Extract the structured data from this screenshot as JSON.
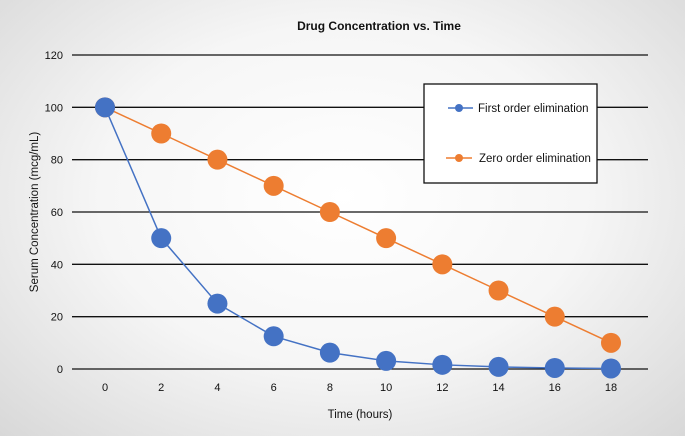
{
  "chart_data": {
    "type": "line",
    "title": "Drug Concentration vs. Time",
    "xlabel": "Time (hours)",
    "ylabel": "Serum Concentration (mcg/mL)",
    "x": [
      0,
      2,
      4,
      6,
      8,
      10,
      12,
      14,
      16,
      18
    ],
    "xlim": [
      0,
      18
    ],
    "ylim": [
      0,
      120
    ],
    "yticks": [
      0,
      20,
      40,
      60,
      80,
      100,
      120
    ],
    "grid": true,
    "legend_position": "top-right",
    "series": [
      {
        "name": "First order elimination",
        "color": "#4472c4",
        "values": [
          100,
          50,
          25,
          12.5,
          6.25,
          3.1,
          1.6,
          0.8,
          0.4,
          0.2
        ]
      },
      {
        "name": "Zero order elimination",
        "color": "#ed7d31",
        "values": [
          100,
          90,
          80,
          70,
          60,
          50,
          40,
          30,
          20,
          10
        ]
      }
    ]
  }
}
